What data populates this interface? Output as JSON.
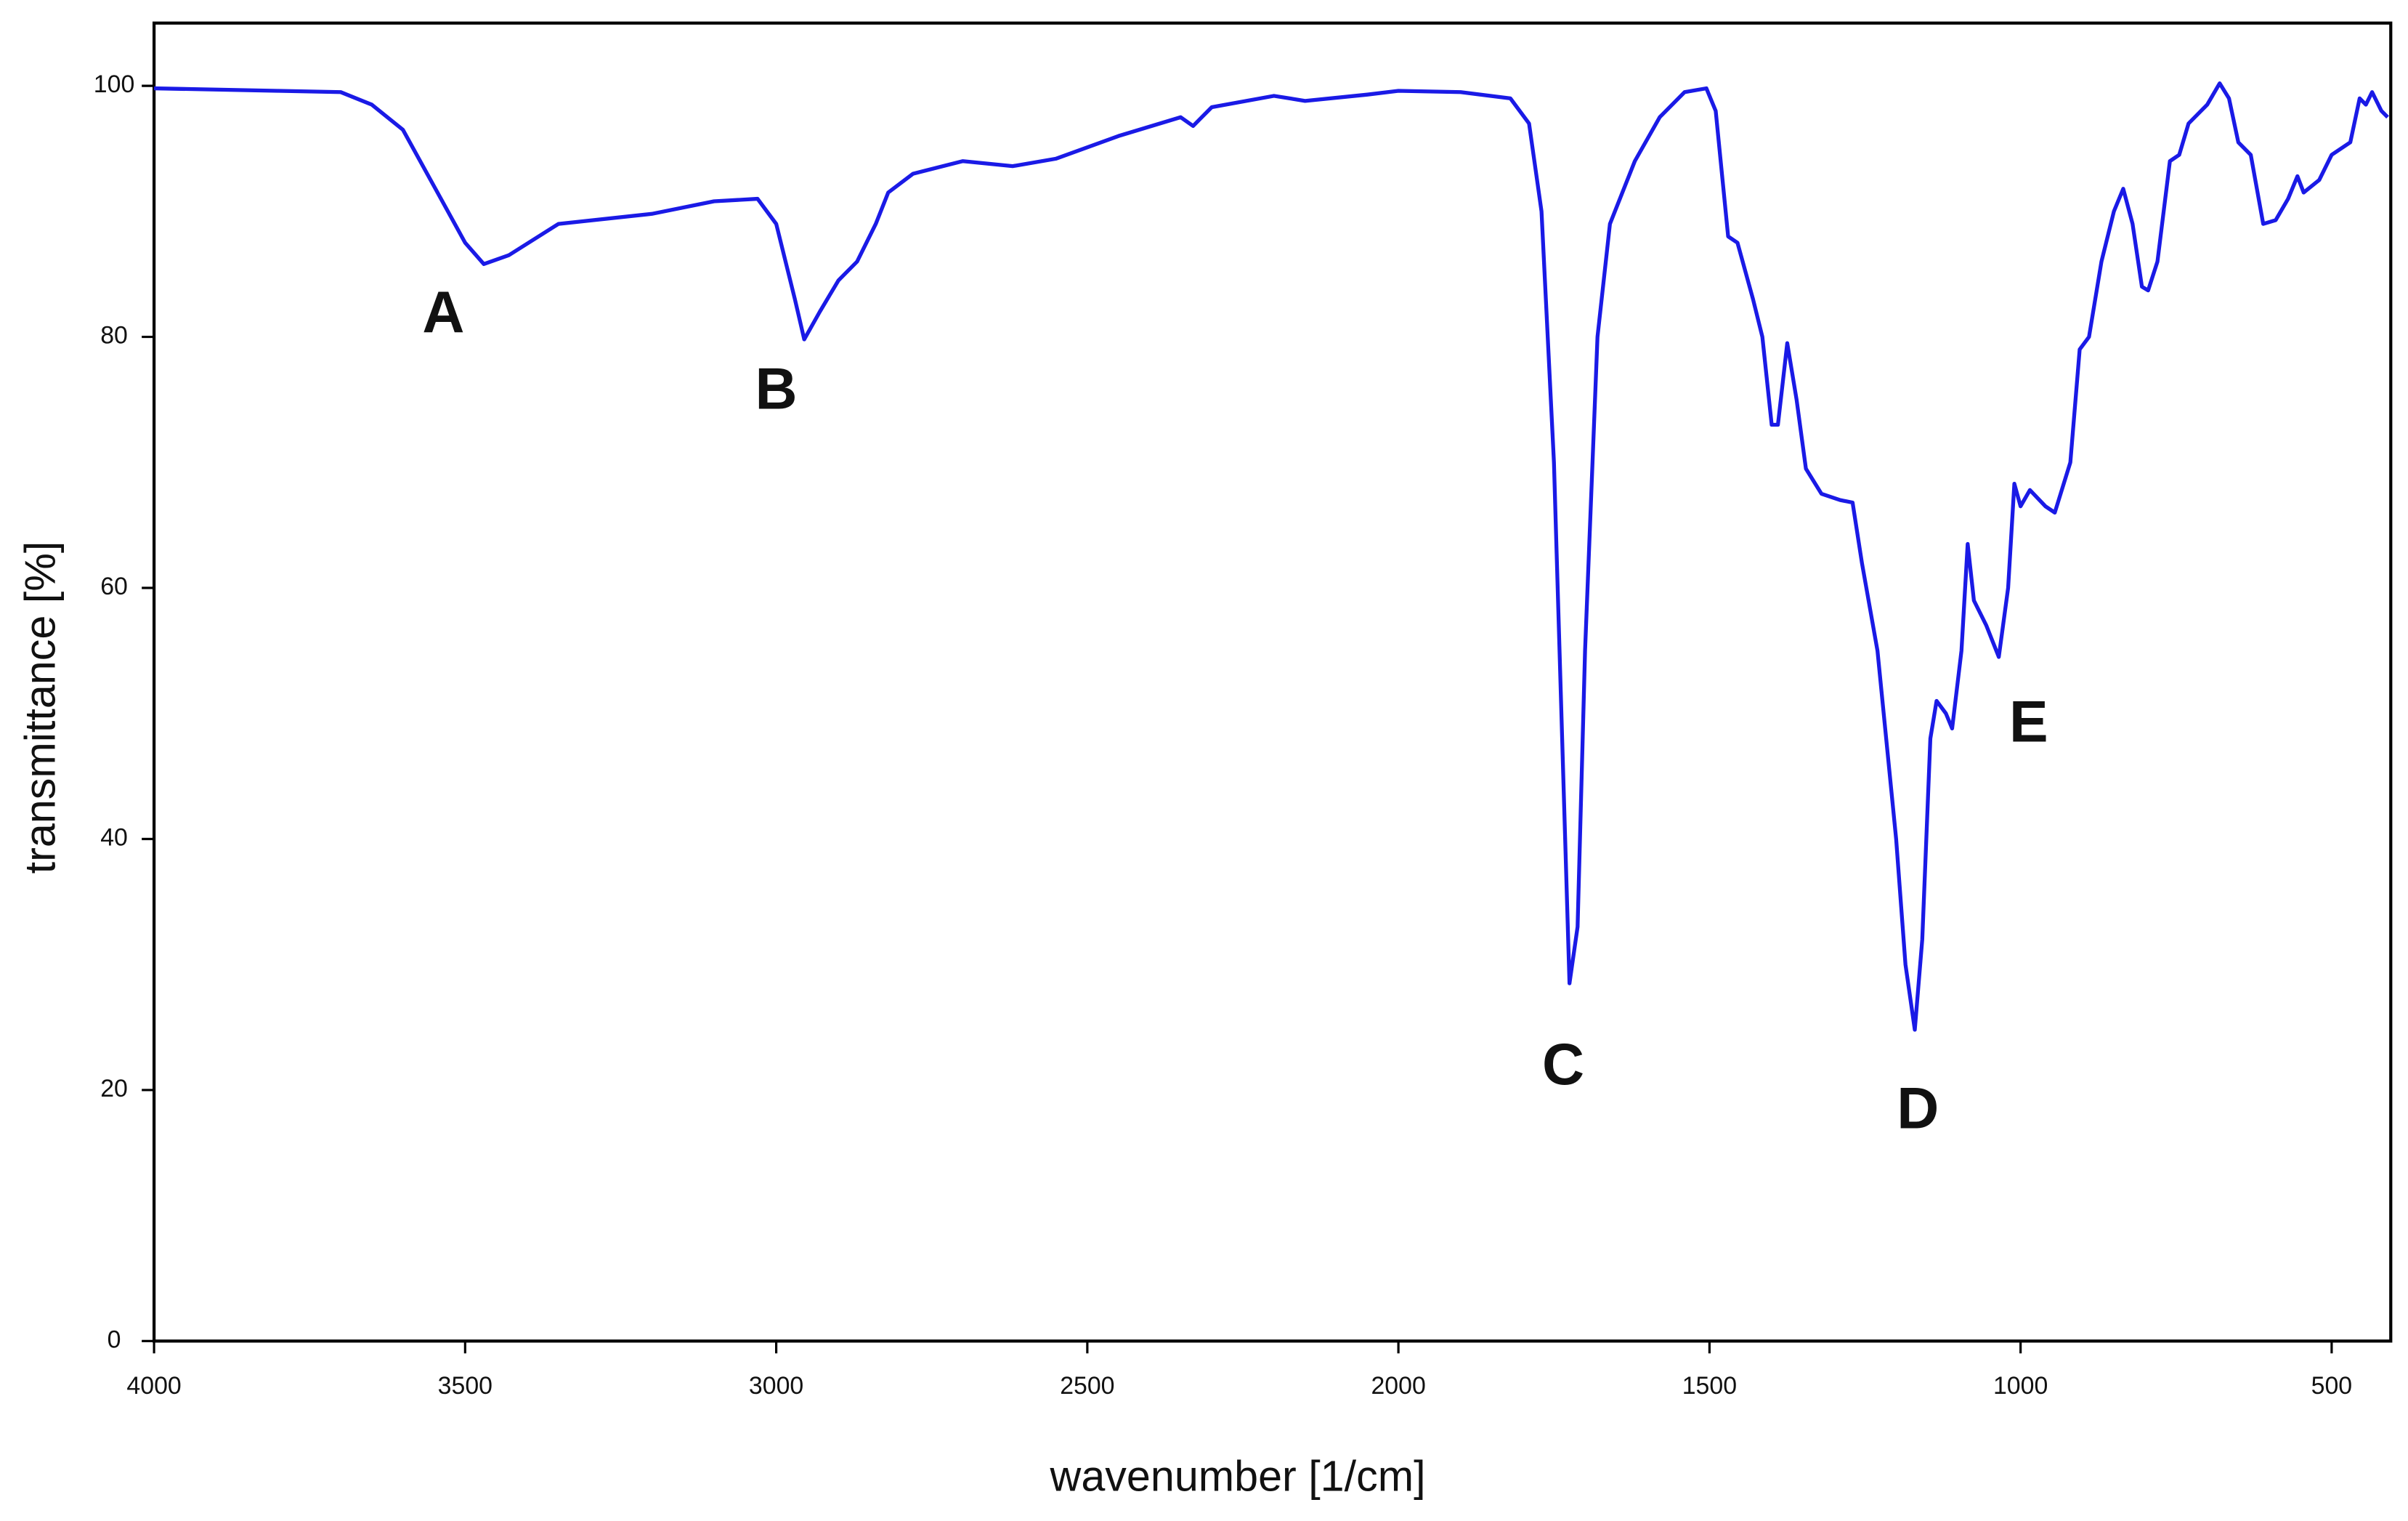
{
  "chart_data": {
    "type": "line",
    "x_label": "wavenumber [1/cm]",
    "y_label": "transmittance [%]",
    "xlim": [
      4000,
      405
    ],
    "ylim": [
      0,
      105
    ],
    "xticks": [
      4000,
      3500,
      3000,
      2500,
      2000,
      1500,
      1000,
      500
    ],
    "yticks": [
      0,
      20,
      40,
      60,
      80,
      100
    ],
    "grid": false,
    "color": "#1a1ae6",
    "x": [
      4000,
      3800,
      3700,
      3650,
      3600,
      3550,
      3500,
      3470,
      3430,
      3350,
      3200,
      3100,
      3030,
      3000,
      2970,
      2955,
      2930,
      2900,
      2870,
      2840,
      2820,
      2780,
      2700,
      2620,
      2550,
      2450,
      2350,
      2330,
      2300,
      2200,
      2150,
      2050,
      2000,
      1900,
      1820,
      1790,
      1770,
      1750,
      1735,
      1725,
      1712,
      1700,
      1680,
      1660,
      1620,
      1580,
      1540,
      1505,
      1490,
      1470,
      1455,
      1430,
      1415,
      1400,
      1390,
      1375,
      1360,
      1345,
      1320,
      1290,
      1270,
      1255,
      1230,
      1200,
      1185,
      1170,
      1158,
      1145,
      1135,
      1120,
      1110,
      1095,
      1085,
      1075,
      1055,
      1035,
      1020,
      1010,
      1000,
      985,
      960,
      945,
      920,
      905,
      890,
      870,
      850,
      835,
      820,
      805,
      795,
      780,
      760,
      745,
      730,
      700,
      680,
      665,
      650,
      630,
      610,
      590,
      570,
      555,
      545,
      520,
      500,
      470,
      455,
      445,
      435,
      420,
      410
    ],
    "values": [
      99.8,
      99.6,
      99.5,
      98.5,
      96.5,
      92,
      87.5,
      85.8,
      86.5,
      89,
      89.8,
      90.8,
      91,
      89,
      83,
      79.8,
      82,
      84.5,
      86,
      89,
      91.5,
      93,
      94,
      93.6,
      94.2,
      96,
      97.5,
      96.8,
      98.3,
      99.2,
      98.8,
      99.3,
      99.6,
      99.5,
      99,
      97,
      90,
      70,
      45,
      28.5,
      33,
      55,
      80,
      89,
      94,
      97.5,
      99.5,
      99.8,
      98,
      88,
      87.5,
      83,
      80,
      73,
      73,
      79.5,
      75,
      69.5,
      67.5,
      67,
      66.8,
      62,
      55,
      40,
      30,
      24.8,
      32,
      48,
      51,
      50,
      48.8,
      55,
      63.5,
      59,
      57,
      54.5,
      60,
      68.3,
      66.5,
      67.8,
      66.5,
      66,
      70,
      79,
      80,
      86,
      90,
      91.8,
      89,
      84,
      83.7,
      86,
      94,
      94.5,
      97,
      98.5,
      100.2,
      99,
      95.5,
      94.5,
      89,
      89.3,
      91,
      92.8,
      91.5,
      92.5,
      94.5,
      95.5,
      99,
      98.5,
      99.5,
      98,
      97.5
    ],
    "annotations": [
      {
        "text": "A",
        "x": 3535,
        "y": 81.6
      },
      {
        "text": "B",
        "x": 3000,
        "y": 75.5
      },
      {
        "text": "C",
        "x": 1735,
        "y": 21.7
      },
      {
        "text": "D",
        "x": 1165,
        "y": 18.2
      },
      {
        "text": "E",
        "x": 987,
        "y": 49
      }
    ]
  }
}
